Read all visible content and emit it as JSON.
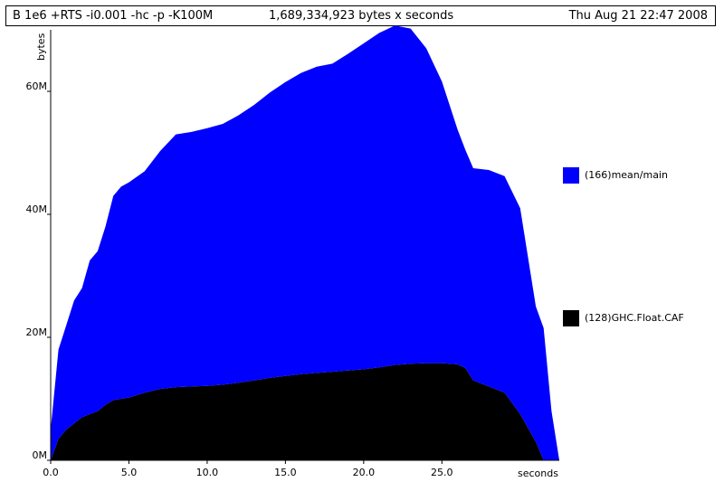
{
  "header": {
    "left": "B 1e6 +RTS -i0.001 -hc -p -K100M",
    "middle": "1,689,334,923 bytes x seconds",
    "right": "Thu Aug 21 22:47 2008"
  },
  "chart_data": {
    "type": "area",
    "stacked": true,
    "ylabel": "bytes",
    "xlabel": "seconds",
    "xlim": [
      0,
      32.5
    ],
    "ylim": [
      0,
      70000000
    ],
    "x_ticks": [
      "0.0",
      "5.0",
      "10.0",
      "15.0",
      "20.0",
      "25.0"
    ],
    "x_tick_values": [
      0,
      5,
      10,
      15,
      20,
      25
    ],
    "y_ticks": [
      "0M",
      "20M",
      "40M",
      "60M"
    ],
    "y_tick_values": [
      0,
      20000000,
      40000000,
      60000000
    ],
    "legend_position": "right",
    "x": [
      0,
      0.5,
      1,
      1.5,
      2,
      2.5,
      3,
      3.5,
      4,
      4.5,
      5,
      6,
      7,
      8,
      9,
      10,
      11,
      12,
      13,
      14,
      15,
      16,
      17,
      18,
      19,
      20,
      21,
      22,
      23,
      24,
      25,
      26,
      26.5,
      27,
      28,
      29,
      30,
      31,
      31.5,
      32,
      32.5
    ],
    "series": [
      {
        "name": "(128)GHC.Float.CAF",
        "color": "#000000",
        "values": [
          0,
          3.5,
          5,
          6,
          7,
          7.5,
          8,
          9,
          9.8,
          10,
          10.2,
          11,
          11.6,
          11.9,
          12,
          12.1,
          12.3,
          12.6,
          13,
          13.4,
          13.7,
          14,
          14.2,
          14.4,
          14.6,
          14.8,
          15.1,
          15.5,
          15.7,
          15.8,
          15.8,
          15.6,
          15,
          13,
          12,
          11,
          7.5,
          3,
          0,
          0,
          0
        ]
      },
      {
        "name": "(166)mean/main",
        "color": "#0000ff",
        "values": [
          5,
          14.5,
          17,
          20,
          21,
          25,
          26,
          29,
          33.2,
          34.5,
          35,
          36,
          38.7,
          41.1,
          41.4,
          41.9,
          42.4,
          43.5,
          44.8,
          46.4,
          47.8,
          49,
          49.8,
          50.1,
          51.5,
          53,
          54.4,
          55.2,
          54.5,
          51.2,
          45.8,
          38.2,
          35.5,
          34.5,
          35.2,
          35.2,
          33.5,
          22,
          21.5,
          8,
          0
        ]
      }
    ],
    "unit_scale": 1000000
  }
}
